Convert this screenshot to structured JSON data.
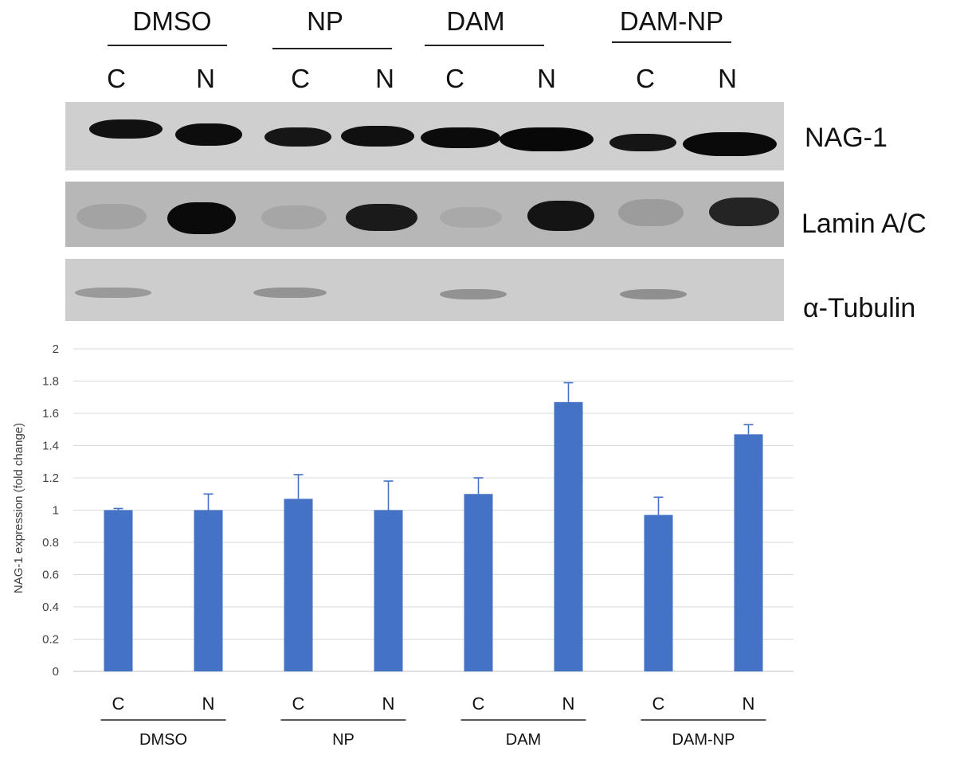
{
  "blot": {
    "groups": [
      "DMSO",
      "NP",
      "DAM",
      "DAM-NP"
    ],
    "lanes": [
      "C",
      "N",
      "C",
      "N",
      "C",
      "N",
      "C",
      "N"
    ],
    "panels": [
      {
        "name": "NAG-1"
      },
      {
        "name": "Lamin A/C"
      },
      {
        "name": "α-Tubulin"
      }
    ]
  },
  "chart_data": {
    "type": "bar",
    "categories": [
      "C",
      "N",
      "C",
      "N",
      "C",
      "N",
      "C",
      "N"
    ],
    "groups": [
      "DMSO",
      "NP",
      "DAM",
      "DAM-NP"
    ],
    "values": [
      1.0,
      1.0,
      1.07,
      1.0,
      1.1,
      1.67,
      0.97,
      1.47
    ],
    "errors": [
      0.01,
      0.1,
      0.15,
      0.18,
      0.1,
      0.12,
      0.11,
      0.06
    ],
    "title": "",
    "xlabel": "",
    "ylabel": "NAG-1  expression (fold change)",
    "ylim": [
      0,
      2
    ],
    "yticks": [
      "0",
      "0.2",
      "0.4",
      "0.6",
      "0.8",
      "1",
      "1.2",
      "1.4",
      "1.6",
      "1.8",
      "2"
    ],
    "grid": true,
    "bar_color": "#4472c4",
    "grid_color": "#d9d9d9"
  }
}
